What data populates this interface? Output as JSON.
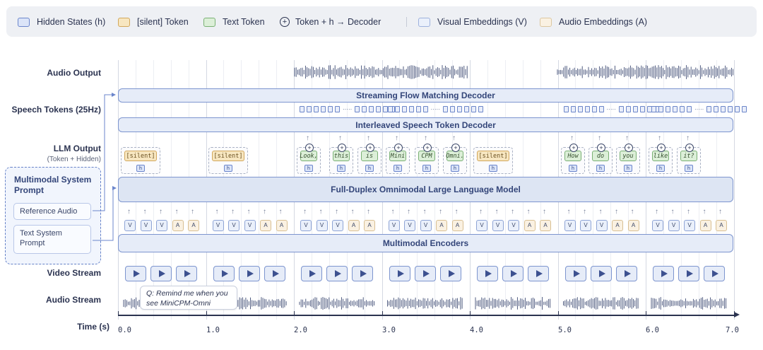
{
  "legend": {
    "hidden": "Hidden States (h)",
    "silent": "[silent] Token",
    "text": "Text Token",
    "combine": "Token + h → Decoder",
    "visual": "Visual Embeddings (V)",
    "audio": "Audio Embeddings (A)"
  },
  "rows": {
    "audio_output": "Audio Output",
    "speech_tokens": "Speech Tokens (25Hz)",
    "llm_output": "LLM Output",
    "llm_output_sub": "(Token + Hidden)",
    "video_stream": "Video Stream",
    "audio_stream": "Audio Stream",
    "time": "Time (s)"
  },
  "blocks": {
    "flow_decoder": "Streaming Flow Matching Decoder",
    "token_decoder": "Interleaved Speech Token Decoder",
    "llm": "Full-Duplex Omnimodal Large Language Model",
    "encoders": "Multimodal Encoders"
  },
  "system_prompt": {
    "title_line1": "Multimodal System",
    "title_line2": "Prompt",
    "reference_audio": "Reference Audio",
    "text_prompt_line1": "Text System",
    "text_prompt_line2": "Prompt"
  },
  "callout": {
    "line1": "Q: Remind me when you",
    "line2": "see MiniCPM-Omni"
  },
  "hidden_label": "h",
  "silent_label": "[silent]",
  "plus_symbol": "+",
  "arrow_symbol": "↑",
  "embedding_labels": {
    "visual": "V",
    "audio": "A"
  },
  "embedding_pattern": [
    "V",
    "V",
    "V",
    "A",
    "A"
  ],
  "output_tokens": [
    {
      "text": "[silent]",
      "kind": "silent"
    },
    {
      "text": "[silent]",
      "kind": "silent"
    },
    {
      "text": "Look,",
      "kind": "text"
    },
    {
      "text": "this",
      "kind": "text"
    },
    {
      "text": "is",
      "kind": "text"
    },
    {
      "text": "Mini",
      "kind": "text"
    },
    {
      "text": "CPM",
      "kind": "text"
    },
    {
      "text": "Omni.",
      "kind": "text"
    },
    {
      "text": "[silent]",
      "kind": "silent"
    },
    {
      "text": "How",
      "kind": "text"
    },
    {
      "text": "do",
      "kind": "text"
    },
    {
      "text": "you",
      "kind": "text"
    },
    {
      "text": "like",
      "kind": "text"
    },
    {
      "text": "it?",
      "kind": "text"
    }
  ],
  "time_ticks": [
    "0.0",
    "1.0",
    "2.0",
    "3.0",
    "4.0",
    "5.0",
    "6.0",
    "7.0"
  ],
  "colors": {
    "hidden": "#6b86cc",
    "silent": "#d2a75b",
    "text": "#7ab174",
    "visual": "#9db1dd",
    "audio": "#dcc7a0",
    "block_border": "#7d95cf",
    "wave": "#3d4a73"
  }
}
